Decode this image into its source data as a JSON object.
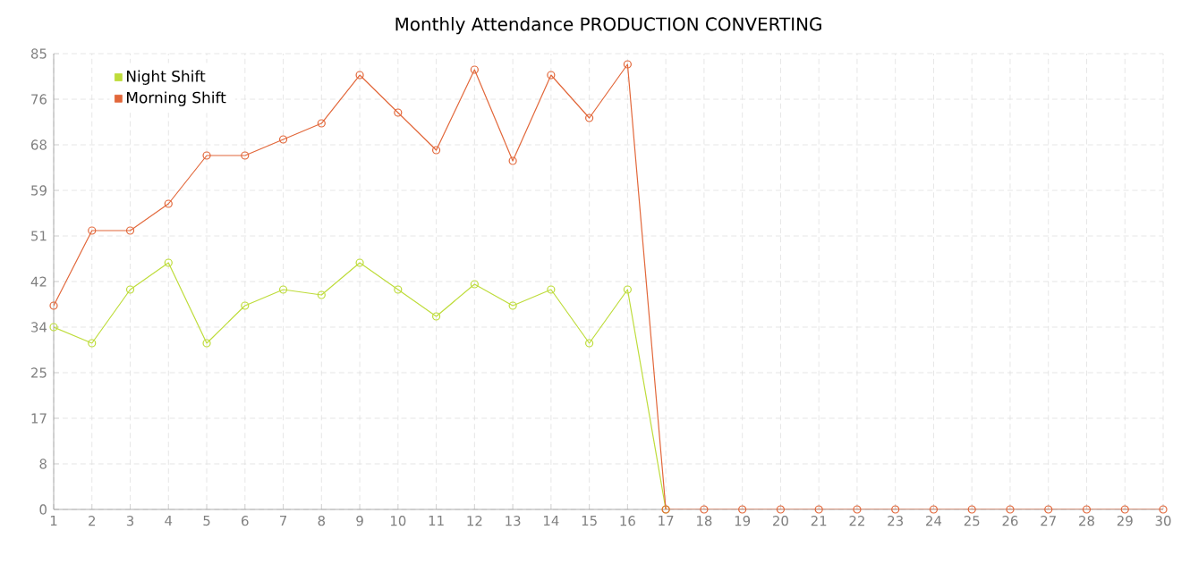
{
  "chart_data": {
    "type": "line",
    "title": "Monthly Attendance PRODUCTION CONVERTING",
    "x": [
      1,
      2,
      3,
      4,
      5,
      6,
      7,
      8,
      9,
      10,
      11,
      12,
      13,
      14,
      15,
      16,
      17,
      18,
      19,
      20,
      21,
      22,
      23,
      24,
      25,
      26,
      27,
      28,
      29,
      30
    ],
    "series": [
      {
        "name": "Night Shift",
        "color": "#bedc3a",
        "values": [
          34,
          31,
          41,
          46,
          31,
          38,
          41,
          40,
          46,
          41,
          36,
          42,
          38,
          41,
          31,
          41,
          0,
          null,
          null,
          null,
          null,
          null,
          null,
          null,
          null,
          null,
          null,
          null,
          null,
          null
        ]
      },
      {
        "name": "Morning Shift",
        "color": "#e2673a",
        "values": [
          38,
          52,
          52,
          57,
          66,
          66,
          69,
          72,
          81,
          74,
          67,
          82,
          65,
          81,
          73,
          83,
          0,
          0,
          0,
          0,
          0,
          0,
          0,
          0,
          0,
          0,
          0,
          0,
          0,
          0
        ]
      }
    ],
    "xlim": [
      1,
      30
    ],
    "xticks": [
      1,
      2,
      3,
      4,
      5,
      6,
      7,
      8,
      9,
      10,
      11,
      12,
      13,
      14,
      15,
      16,
      17,
      18,
      19,
      20,
      21,
      22,
      23,
      24,
      25,
      26,
      27,
      28,
      29,
      30
    ],
    "ylim": [
      0,
      85
    ],
    "yticks": [
      0,
      {
        "value": 8.5,
        "label": "8"
      },
      17,
      {
        "value": 25.5,
        "label": "25"
      },
      34,
      {
        "value": 42.5,
        "label": "42"
      },
      51,
      {
        "value": 59.5,
        "label": "59"
      },
      68,
      {
        "value": 76.5,
        "label": "76"
      },
      85
    ],
    "grid": true,
    "legend": "top left",
    "marker": "circle",
    "line_style": "solid"
  }
}
